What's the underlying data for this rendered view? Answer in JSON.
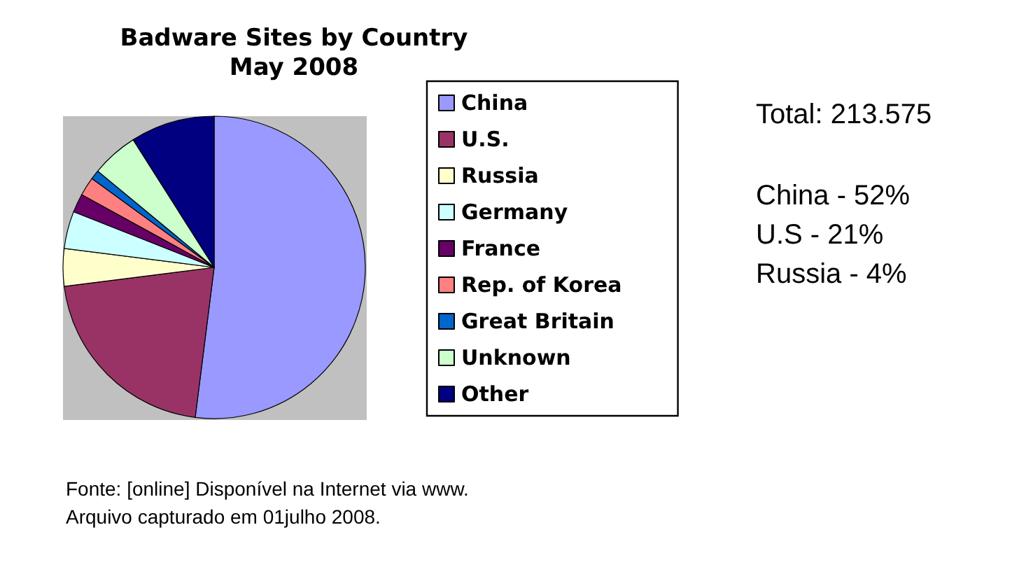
{
  "chart_data": {
    "type": "pie",
    "title": "Badware Sites by Country",
    "subtitle": "May 2008",
    "categories": [
      "China",
      "U.S.",
      "Russia",
      "Germany",
      "France",
      "Rep. of Korea",
      "Great Britain",
      "Unknown",
      "Other"
    ],
    "values": [
      52,
      21,
      4,
      4,
      2,
      2,
      1,
      5,
      9
    ],
    "colors": [
      "#9999ff",
      "#993366",
      "#ffffcc",
      "#ccffff",
      "#660066",
      "#ff8080",
      "#0066cc",
      "#ccffcc",
      "#000080"
    ],
    "legend": "right",
    "annotations": [
      "Total: 213.575",
      "China - 52%",
      "U.S - 21%",
      "Russia - 4%",
      "Fonte: [online] Disponível na Internet via www.",
      "Arquivo capturado em 01julho 2008."
    ]
  }
}
